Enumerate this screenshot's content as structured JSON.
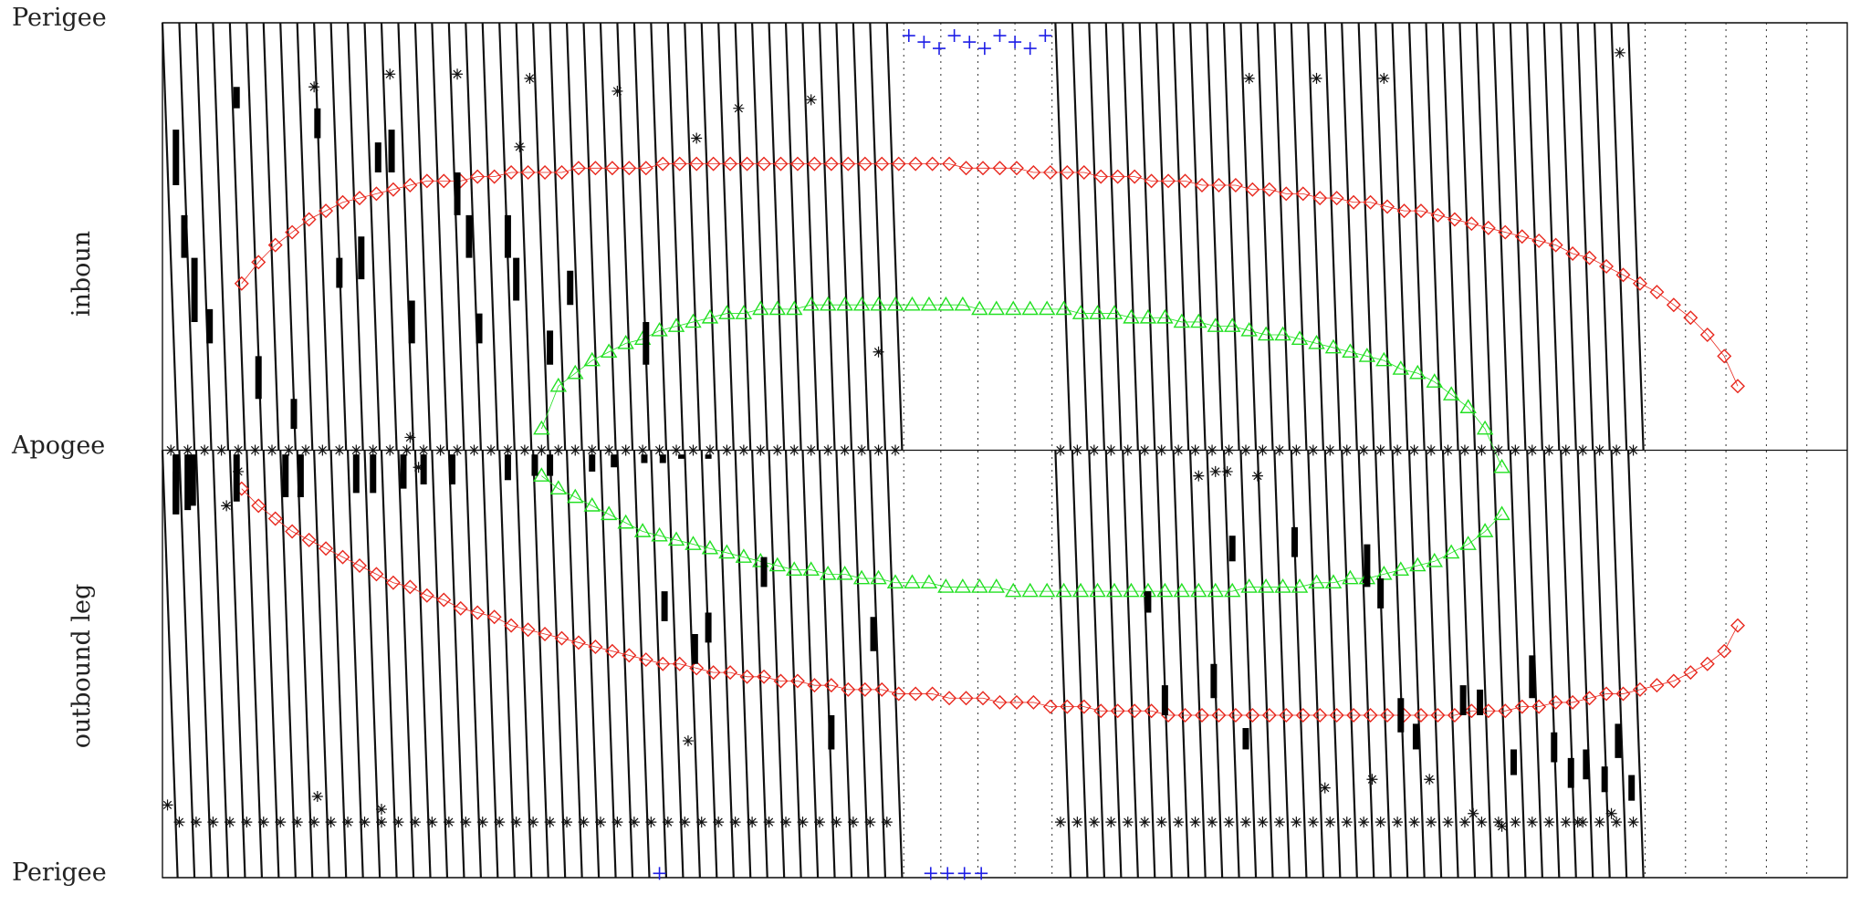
{
  "chart_data": {
    "type": "scatter",
    "title": "",
    "xlabel": "",
    "y_tick_labels": [
      "Perigee",
      "Apogee",
      "Perigee"
    ],
    "y_section_labels": [
      "inboun",
      "outbound leg"
    ],
    "x_range": [
      0,
      100
    ],
    "y_range": [
      0,
      2
    ],
    "y_ticks": [
      2,
      1,
      0
    ],
    "grid": {
      "solid_orbit_count": 87,
      "dotted_gap": [
        [
          44,
          52.8
        ],
        [
          88,
          100
        ]
      ],
      "dotted_count": 20
    },
    "series": [
      {
        "marker": "diamond",
        "color": "#e8281e",
        "x": [
          4.7,
          5.7,
          6.7,
          7.7,
          8.7,
          9.7,
          10.7,
          11.7,
          12.7,
          13.7,
          14.7,
          15.7,
          16.7,
          17.7,
          18.7,
          19.7,
          20.7,
          21.7,
          22.7,
          23.7,
          24.7,
          25.7,
          26.7,
          27.7,
          28.7,
          29.7,
          30.7,
          31.7,
          32.7,
          33.7,
          34.7,
          35.7,
          36.7,
          37.7,
          38.7,
          39.7,
          40.7,
          41.7,
          42.7,
          43.7,
          44.7,
          45.7,
          46.7,
          47.7,
          48.7,
          49.7,
          50.7,
          51.7,
          52.7,
          53.7,
          54.7,
          55.7,
          56.7,
          57.7,
          58.7,
          59.7,
          60.7,
          61.7,
          62.7,
          63.7,
          64.7,
          65.7,
          66.7,
          67.7,
          68.7,
          69.7,
          70.7,
          71.7,
          72.7,
          73.7,
          74.7,
          75.7,
          76.7,
          77.7,
          78.7,
          79.7,
          80.7,
          81.7,
          82.7,
          83.7,
          84.7,
          85.7,
          86.7,
          87.7,
          88.7,
          89.7,
          90.7,
          91.7,
          92.7,
          93.5
        ],
        "inbound_y": [
          1.39,
          1.44,
          1.48,
          1.51,
          1.54,
          1.56,
          1.58,
          1.59,
          1.6,
          1.61,
          1.62,
          1.63,
          1.63,
          1.63,
          1.64,
          1.64,
          1.65,
          1.65,
          1.65,
          1.65,
          1.66,
          1.66,
          1.66,
          1.66,
          1.66,
          1.67,
          1.67,
          1.67,
          1.67,
          1.67,
          1.67,
          1.67,
          1.67,
          1.67,
          1.67,
          1.67,
          1.67,
          1.67,
          1.67,
          1.67,
          1.67,
          1.67,
          1.67,
          1.66,
          1.66,
          1.66,
          1.66,
          1.65,
          1.65,
          1.65,
          1.65,
          1.64,
          1.64,
          1.64,
          1.63,
          1.63,
          1.63,
          1.62,
          1.62,
          1.62,
          1.61,
          1.61,
          1.6,
          1.6,
          1.59,
          1.59,
          1.58,
          1.58,
          1.57,
          1.56,
          1.56,
          1.55,
          1.54,
          1.53,
          1.52,
          1.51,
          1.5,
          1.49,
          1.48,
          1.46,
          1.45,
          1.43,
          1.41,
          1.39,
          1.37,
          1.34,
          1.31,
          1.27,
          1.22,
          1.15
        ],
        "outbound_y": [
          0.91,
          0.87,
          0.84,
          0.81,
          0.79,
          0.77,
          0.75,
          0.73,
          0.71,
          0.69,
          0.68,
          0.66,
          0.65,
          0.63,
          0.62,
          0.61,
          0.59,
          0.58,
          0.57,
          0.56,
          0.55,
          0.54,
          0.53,
          0.52,
          0.51,
          0.5,
          0.5,
          0.49,
          0.48,
          0.48,
          0.47,
          0.47,
          0.46,
          0.46,
          0.45,
          0.45,
          0.44,
          0.44,
          0.44,
          0.43,
          0.43,
          0.43,
          0.42,
          0.42,
          0.42,
          0.41,
          0.41,
          0.41,
          0.4,
          0.4,
          0.4,
          0.39,
          0.39,
          0.39,
          0.39,
          0.38,
          0.38,
          0.38,
          0.38,
          0.38,
          0.38,
          0.38,
          0.38,
          0.38,
          0.38,
          0.38,
          0.38,
          0.38,
          0.38,
          0.38,
          0.38,
          0.38,
          0.38,
          0.39,
          0.39,
          0.39,
          0.4,
          0.4,
          0.41,
          0.41,
          0.42,
          0.43,
          0.43,
          0.44,
          0.45,
          0.46,
          0.48,
          0.5,
          0.53,
          0.59
        ]
      },
      {
        "marker": "triangle",
        "color": "#22e022",
        "x": [
          22.5,
          23.5,
          24.5,
          25.5,
          26.5,
          27.5,
          28.5,
          29.5,
          30.5,
          31.5,
          32.5,
          33.5,
          34.5,
          35.5,
          36.5,
          37.5,
          38.5,
          39.5,
          40.5,
          41.5,
          42.5,
          43.5,
          44.5,
          45.5,
          46.5,
          47.5,
          48.5,
          49.5,
          50.5,
          51.5,
          52.5,
          53.5,
          54.5,
          55.5,
          56.5,
          57.5,
          58.5,
          59.5,
          60.5,
          61.5,
          62.5,
          63.5,
          64.5,
          65.5,
          66.5,
          67.5,
          68.5,
          69.5,
          70.5,
          71.5,
          72.5,
          73.5,
          74.5,
          75.5,
          76.5,
          77.5,
          78.5,
          79.5
        ],
        "inbound_y": [
          1.05,
          1.15,
          1.18,
          1.21,
          1.23,
          1.25,
          1.26,
          1.28,
          1.29,
          1.3,
          1.31,
          1.32,
          1.32,
          1.33,
          1.33,
          1.33,
          1.34,
          1.34,
          1.34,
          1.34,
          1.34,
          1.34,
          1.34,
          1.34,
          1.34,
          1.34,
          1.33,
          1.33,
          1.33,
          1.33,
          1.33,
          1.33,
          1.32,
          1.32,
          1.32,
          1.31,
          1.31,
          1.31,
          1.3,
          1.3,
          1.29,
          1.29,
          1.28,
          1.27,
          1.27,
          1.26,
          1.25,
          1.24,
          1.23,
          1.22,
          1.21,
          1.19,
          1.18,
          1.16,
          1.13,
          1.1,
          1.05,
          0.96
        ],
        "outbound_y": [
          0.94,
          0.91,
          0.89,
          0.87,
          0.85,
          0.83,
          0.81,
          0.8,
          0.79,
          0.78,
          0.77,
          0.76,
          0.75,
          0.74,
          0.73,
          0.72,
          0.72,
          0.71,
          0.71,
          0.7,
          0.7,
          0.69,
          0.69,
          0.69,
          0.68,
          0.68,
          0.68,
          0.68,
          0.67,
          0.67,
          0.67,
          0.67,
          0.67,
          0.67,
          0.67,
          0.67,
          0.67,
          0.67,
          0.67,
          0.67,
          0.67,
          0.67,
          0.68,
          0.68,
          0.68,
          0.68,
          0.69,
          0.69,
          0.7,
          0.7,
          0.71,
          0.72,
          0.73,
          0.74,
          0.76,
          0.78,
          0.81,
          0.85
        ]
      },
      {
        "marker": "plus",
        "color": "#1e1ee6",
        "top_x": [
          44.3,
          45.2,
          46.1,
          47.0,
          47.9,
          48.8,
          49.7,
          50.6,
          51.5,
          52.4
        ],
        "bottom_x": [
          29.5,
          45.6,
          46.6,
          47.6,
          48.6
        ]
      },
      {
        "marker": "asterisk",
        "color": "#111111",
        "apogee_x": [
          0.5,
          1.5,
          2.5,
          3.5,
          4.5,
          5.5,
          6.5,
          7.5,
          8.5,
          9.5,
          10.5,
          11.5,
          12.5,
          13.5,
          14.5,
          15.5,
          16.5,
          17.5,
          18.5,
          19.5,
          20.5,
          21.5,
          22.5,
          23.5,
          24.5,
          25.5,
          26.5,
          27.5,
          28.5,
          29.5,
          30.5,
          31.5,
          32.5,
          33.5,
          34.5,
          35.5,
          36.5,
          37.5,
          38.5,
          39.5,
          40.5,
          41.5,
          42.5,
          43.5,
          53.3,
          54.3,
          55.3,
          56.3,
          57.3,
          58.3,
          59.3,
          60.3,
          61.3,
          62.3,
          63.3,
          64.3,
          65.3,
          66.3,
          67.3,
          68.3,
          69.3,
          70.3,
          71.3,
          72.3,
          73.3,
          74.3,
          75.3,
          76.3,
          77.3,
          78.3,
          79.3,
          80.3,
          81.3,
          82.3,
          83.3,
          84.3,
          85.3,
          86.3,
          87.3
        ],
        "lower_row_x": [
          1.0,
          2.0,
          3.0,
          4.0,
          5.0,
          6.0,
          7.0,
          8.0,
          9.0,
          10.0,
          11.0,
          12.0,
          13.0,
          14.0,
          15.0,
          16.0,
          17.0,
          18.0,
          19.0,
          20.0,
          21.0,
          22.0,
          23.0,
          24.0,
          25.0,
          26.0,
          27.0,
          28.0,
          29.0,
          30.0,
          31.0,
          32.0,
          33.0,
          34.0,
          35.0,
          36.0,
          37.0,
          38.0,
          39.0,
          40.0,
          41.0,
          42.0,
          43.0,
          53.3,
          54.3,
          55.3,
          56.3,
          57.3,
          58.3,
          59.3,
          60.3,
          61.3,
          62.3,
          63.3,
          64.3,
          65.3,
          66.3,
          67.3,
          68.3,
          69.3,
          70.3,
          71.3,
          72.3,
          73.3,
          74.3,
          75.3,
          76.3,
          77.3,
          78.3,
          79.3,
          80.3,
          81.3,
          82.3,
          83.3,
          84.3,
          85.3,
          86.3,
          87.3
        ],
        "scattered": [
          [
            9,
            1.85
          ],
          [
            13.5,
            1.88
          ],
          [
            17.5,
            1.88
          ],
          [
            21.8,
            1.87
          ],
          [
            27,
            1.84
          ],
          [
            34.2,
            1.8
          ],
          [
            31.7,
            1.73
          ],
          [
            38.5,
            1.82
          ],
          [
            21.2,
            1.71
          ],
          [
            42.5,
            1.23
          ],
          [
            3.8,
            0.87
          ],
          [
            4.5,
            0.95
          ],
          [
            14.7,
            1.03
          ],
          [
            15.2,
            0.96
          ],
          [
            61.5,
            0.94
          ],
          [
            62.5,
            0.95
          ],
          [
            63.2,
            0.95
          ],
          [
            65,
            0.94
          ],
          [
            0.3,
            0.17
          ],
          [
            9.2,
            0.19
          ],
          [
            13,
            0.16
          ],
          [
            31.2,
            0.32
          ],
          [
            69,
            0.21
          ],
          [
            71.8,
            0.23
          ],
          [
            75.2,
            0.23
          ],
          [
            77.8,
            0.15
          ],
          [
            84,
            0.13
          ],
          [
            86,
            0.15
          ],
          [
            79.5,
            0.12
          ],
          [
            64.5,
            1.87
          ],
          [
            68.5,
            1.87
          ],
          [
            72.5,
            1.87
          ],
          [
            86.5,
            1.93
          ]
        ]
      },
      {
        "marker": "bar-segment",
        "color": "#000000",
        "segments": [
          [
            0.8,
            0.85,
            0.95
          ],
          [
            0.8,
            0.85,
            0.99
          ],
          [
            0.8,
            0.86,
            0.99
          ],
          [
            1.5,
            0.86,
            0.99
          ],
          [
            1.8,
            0.87,
            0.99
          ],
          [
            4.4,
            0.88,
            0.99
          ],
          [
            7.3,
            0.89,
            0.99
          ],
          [
            8.2,
            0.89,
            0.99
          ],
          [
            11.5,
            0.9,
            0.99
          ],
          [
            12.5,
            0.9,
            0.99
          ],
          [
            14.3,
            0.91,
            0.99
          ],
          [
            15.5,
            0.92,
            0.99
          ],
          [
            17.2,
            0.92,
            0.99
          ],
          [
            20.5,
            0.93,
            0.99
          ],
          [
            22.1,
            0.94,
            0.99
          ],
          [
            23,
            0.94,
            0.99
          ],
          [
            25.5,
            0.95,
            0.99
          ],
          [
            26.8,
            0.96,
            0.99
          ],
          [
            28.6,
            0.97,
            0.99
          ],
          [
            29.7,
            0.97,
            0.99
          ],
          [
            30.8,
            0.98,
            0.99
          ],
          [
            32.4,
            0.98,
            0.99
          ],
          [
            35.2,
            0.99,
            0.99
          ],
          [
            36.3,
            0.99,
            0.99
          ],
          [
            38.1,
            0.99,
            0.99
          ],
          [
            40.5,
            0.99,
            0.99
          ],
          [
            41.3,
            0.99,
            0.99
          ],
          [
            42.2,
            0.99,
            0.99
          ],
          [
            0.8,
            1.62,
            1.75
          ],
          [
            1.3,
            1.45,
            1.55
          ],
          [
            1.9,
            1.3,
            1.45
          ],
          [
            2.8,
            1.25,
            1.33
          ],
          [
            4.4,
            1.8,
            1.85
          ],
          [
            5.7,
            1.12,
            1.22
          ],
          [
            7.8,
            1.05,
            1.12
          ],
          [
            9.2,
            1.73,
            1.8
          ],
          [
            10.5,
            1.38,
            1.45
          ],
          [
            11.8,
            1.4,
            1.5
          ],
          [
            12.8,
            1.65,
            1.72
          ],
          [
            13.6,
            1.65,
            1.75
          ],
          [
            14.8,
            1.25,
            1.35
          ],
          [
            17.5,
            1.55,
            1.65
          ],
          [
            18.2,
            1.45,
            1.55
          ],
          [
            18.8,
            1.25,
            1.32
          ],
          [
            20.5,
            1.45,
            1.55
          ],
          [
            21,
            1.35,
            1.45
          ],
          [
            23,
            1.2,
            1.28
          ],
          [
            24.2,
            1.34,
            1.42
          ],
          [
            28.7,
            1.2,
            1.3
          ],
          [
            29.8,
            0.6,
            0.67
          ],
          [
            31.6,
            0.5,
            0.57
          ],
          [
            32.4,
            0.55,
            0.62
          ],
          [
            35.7,
            0.68,
            0.75
          ],
          [
            39.7,
            0.3,
            0.38
          ],
          [
            42.2,
            0.53,
            0.61
          ],
          [
            58.5,
            0.62,
            0.67
          ],
          [
            59.5,
            0.38,
            0.45
          ],
          [
            62.4,
            0.42,
            0.5
          ],
          [
            63.5,
            0.74,
            0.8
          ],
          [
            64.3,
            0.3,
            0.35
          ],
          [
            67.2,
            0.75,
            0.82
          ],
          [
            71.5,
            0.68,
            0.78
          ],
          [
            72.3,
            0.63,
            0.7
          ],
          [
            73.5,
            0.34,
            0.42
          ],
          [
            74.4,
            0.3,
            0.36
          ],
          [
            77.2,
            0.38,
            0.45
          ],
          [
            78.2,
            0.38,
            0.44
          ],
          [
            80.2,
            0.24,
            0.3
          ],
          [
            81.3,
            0.42,
            0.52
          ],
          [
            82.6,
            0.27,
            0.34
          ],
          [
            83.6,
            0.21,
            0.28
          ],
          [
            84.5,
            0.23,
            0.3
          ],
          [
            85.6,
            0.2,
            0.26
          ],
          [
            86.4,
            0.28,
            0.36
          ],
          [
            87.2,
            0.18,
            0.24
          ]
        ]
      }
    ]
  }
}
